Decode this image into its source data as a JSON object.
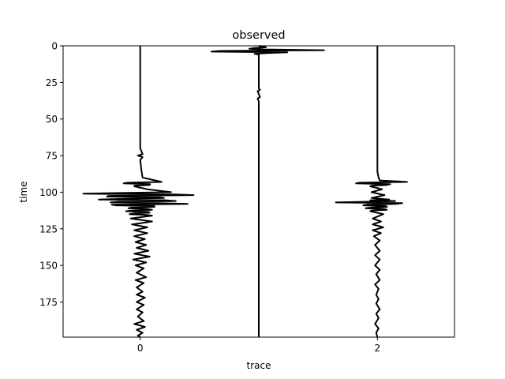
{
  "chart_data": {
    "type": "line",
    "title": "observed",
    "xlabel": "trace",
    "ylabel": "time",
    "xlim": [
      -0.65,
      2.65
    ],
    "ylim": [
      199,
      0
    ],
    "y_inverted": true,
    "x_ticks": [
      0,
      2
    ],
    "y_ticks": [
      0,
      25,
      50,
      75,
      100,
      125,
      150,
      175
    ],
    "grid": false,
    "legend": "none",
    "line_color": "#000000",
    "series": [
      {
        "trace": 0,
        "wiggle": [
          [
            0,
            0
          ],
          [
            70,
            0
          ],
          [
            74,
            0.02
          ],
          [
            75,
            -0.02
          ],
          [
            76,
            0.02
          ],
          [
            78,
            0
          ],
          [
            85,
            0.01
          ],
          [
            90,
            0.02
          ],
          [
            93,
            0.18
          ],
          [
            94,
            -0.14
          ],
          [
            95,
            0.08
          ],
          [
            96,
            -0.05
          ],
          [
            98,
            0.06
          ],
          [
            100,
            0.26
          ],
          [
            101,
            -0.48
          ],
          [
            102,
            0.45
          ],
          [
            103,
            -0.28
          ],
          [
            104,
            0.2
          ],
          [
            105,
            -0.35
          ],
          [
            106,
            0.3
          ],
          [
            107,
            -0.25
          ],
          [
            108,
            0.4
          ],
          [
            109,
            -0.2
          ],
          [
            110,
            0.12
          ],
          [
            111,
            -0.1
          ],
          [
            112,
            0.1
          ],
          [
            113,
            -0.12
          ],
          [
            114,
            0.08
          ],
          [
            115,
            -0.09
          ],
          [
            116,
            0.1
          ],
          [
            118,
            -0.08
          ],
          [
            120,
            0.1
          ],
          [
            122,
            -0.07
          ],
          [
            124,
            0.06
          ],
          [
            126,
            -0.05
          ],
          [
            128,
            0.06
          ],
          [
            130,
            -0.05
          ],
          [
            132,
            0.04
          ],
          [
            134,
            -0.04
          ],
          [
            136,
            0.05
          ],
          [
            138,
            -0.03
          ],
          [
            140,
            0.07
          ],
          [
            142,
            -0.05
          ],
          [
            144,
            0.08
          ],
          [
            146,
            -0.06
          ],
          [
            148,
            0.05
          ],
          [
            150,
            -0.04
          ],
          [
            152,
            0.03
          ],
          [
            155,
            -0.03
          ],
          [
            158,
            0.05
          ],
          [
            160,
            -0.04
          ],
          [
            162,
            0.03
          ],
          [
            165,
            -0.03
          ],
          [
            168,
            0.02
          ],
          [
            170,
            -0.03
          ],
          [
            172,
            0.04
          ],
          [
            175,
            -0.03
          ],
          [
            177,
            0.03
          ],
          [
            180,
            -0.03
          ],
          [
            182,
            0.02
          ],
          [
            185,
            -0.02
          ],
          [
            188,
            0.03
          ],
          [
            190,
            -0.05
          ],
          [
            192,
            0.04
          ],
          [
            194,
            -0.03
          ],
          [
            196,
            0.02
          ],
          [
            198,
            -0.02
          ],
          [
            199,
            0
          ]
        ]
      },
      {
        "trace": 1,
        "wiggle": [
          [
            0,
            0
          ],
          [
            1,
            0.06
          ],
          [
            2,
            -0.08
          ],
          [
            3,
            0.55
          ],
          [
            4,
            -0.4
          ],
          [
            5,
            0.06
          ],
          [
            6,
            0
          ],
          [
            29,
            0
          ],
          [
            30,
            0.01
          ],
          [
            31,
            -0.01
          ],
          [
            33,
            0
          ],
          [
            35,
            0.01
          ],
          [
            36,
            -0.01
          ],
          [
            38,
            0
          ],
          [
            199,
            0
          ]
        ]
      },
      {
        "trace": 2,
        "wiggle": [
          [
            0,
            0
          ],
          [
            86,
            0
          ],
          [
            90,
            0.01
          ],
          [
            92,
            0.02
          ],
          [
            93,
            0.25
          ],
          [
            94,
            -0.18
          ],
          [
            95,
            0.08
          ],
          [
            96,
            -0.06
          ],
          [
            98,
            0.04
          ],
          [
            100,
            -0.05
          ],
          [
            102,
            0.06
          ],
          [
            104,
            -0.05
          ],
          [
            105,
            0.1
          ],
          [
            106,
            0.15
          ],
          [
            107,
            -0.35
          ],
          [
            108,
            0.15
          ],
          [
            109,
            -0.12
          ],
          [
            110,
            0.08
          ],
          [
            111,
            -0.1
          ],
          [
            112,
            0.08
          ],
          [
            113,
            -0.06
          ],
          [
            115,
            0.05
          ],
          [
            118,
            -0.04
          ],
          [
            120,
            0.03
          ],
          [
            122,
            -0.04
          ],
          [
            124,
            0.05
          ],
          [
            126,
            -0.04
          ],
          [
            128,
            0.03
          ],
          [
            130,
            -0.03
          ],
          [
            133,
            0.02
          ],
          [
            136,
            -0.02
          ],
          [
            140,
            0.02
          ],
          [
            143,
            -0.02
          ],
          [
            146,
            0.02
          ],
          [
            150,
            -0.02
          ],
          [
            153,
            0.02
          ],
          [
            156,
            -0.01
          ],
          [
            160,
            0.02
          ],
          [
            163,
            -0.02
          ],
          [
            166,
            0.01
          ],
          [
            170,
            -0.01
          ],
          [
            173,
            0.01
          ],
          [
            176,
            -0.01
          ],
          [
            180,
            0.02
          ],
          [
            183,
            -0.01
          ],
          [
            186,
            0.01
          ],
          [
            190,
            -0.02
          ],
          [
            193,
            0.01
          ],
          [
            196,
            -0.01
          ],
          [
            199,
            0
          ]
        ]
      }
    ]
  }
}
